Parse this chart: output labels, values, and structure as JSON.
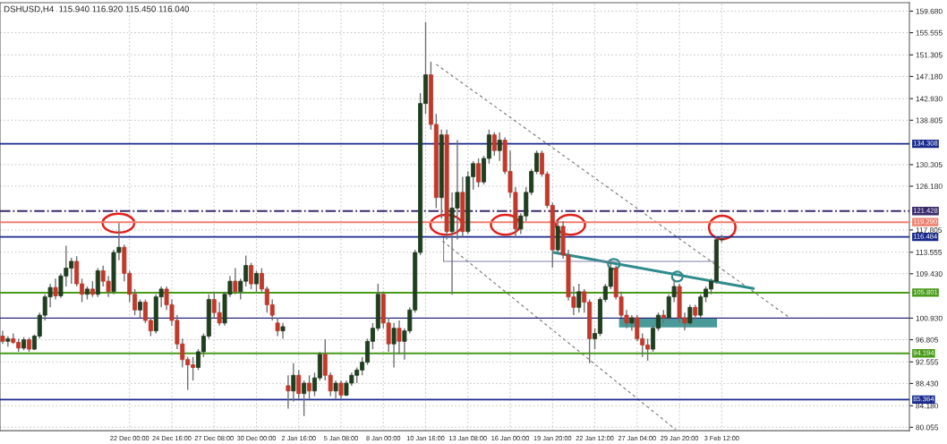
{
  "chart_data": {
    "type": "candlestick",
    "title": "DSHUSD,H4  115.940 116.920 115.450 116.040",
    "categories": [
      null,
      null,
      null,
      null,
      null,
      null,
      null,
      null,
      null,
      null,
      null,
      null,
      null,
      null,
      null,
      null,
      null,
      null,
      null,
      null,
      null,
      null,
      null,
      null,
      "22 Dec 00:00",
      null,
      null,
      null,
      null,
      null,
      null,
      null,
      "24 Dec 16:00",
      null,
      null,
      null,
      null,
      null,
      null,
      null,
      "27 Dec 08:00",
      null,
      null,
      null,
      null,
      null,
      null,
      null,
      "30 Dec 00:00",
      null,
      null,
      null,
      null,
      null,
      null,
      null,
      "2 Jan 16:00",
      null,
      null,
      null,
      null,
      null,
      null,
      null,
      "5 Jan 08:00",
      null,
      null,
      null,
      null,
      null,
      null,
      null,
      "8 Jan 00:00",
      null,
      null,
      null,
      null,
      null,
      null,
      null,
      "10 Jan 16:00",
      null,
      null,
      null,
      null,
      null,
      null,
      null,
      "13 Jan 08:00",
      null,
      null,
      null,
      null,
      null,
      null,
      null,
      "16 Jan 00:00",
      null,
      null,
      null,
      null,
      null,
      null,
      null,
      "19 Jan 20:00",
      null,
      null,
      null,
      null,
      null,
      null,
      null,
      "22 Jan 12:00",
      null,
      null,
      null,
      null,
      null,
      null,
      null,
      "27 Jan 04:00",
      null,
      null,
      null,
      null,
      null,
      null,
      null,
      "29 Jan 20:00",
      null,
      null,
      null,
      null,
      null,
      null,
      null,
      "3 Feb 12:00",
      null,
      null,
      null,
      null,
      null,
      null,
      null,
      null,
      null,
      null,
      null,
      null,
      null,
      null,
      null,
      null,
      null,
      null,
      null,
      null,
      null,
      null,
      null,
      null,
      null,
      null,
      null,
      null,
      null,
      null,
      null,
      null,
      null,
      null,
      null
    ],
    "ohlc": [
      [
        97.5,
        98.5,
        96,
        96.5
      ],
      [
        96.5,
        97.5,
        95.5,
        97
      ],
      [
        97,
        98,
        96,
        96.3
      ],
      [
        96.3,
        97,
        94.5,
        95.2
      ],
      [
        95.2,
        97.3,
        94.8,
        96.8
      ],
      [
        96.8,
        97.2,
        94.5,
        95
      ],
      [
        95,
        97.8,
        94.8,
        97.5
      ],
      [
        97.5,
        102,
        97,
        101.5
      ],
      [
        101.5,
        105.5,
        100.5,
        105
      ],
      [
        105,
        107.5,
        103,
        106.8
      ],
      [
        106.8,
        108.5,
        104.5,
        105.2
      ],
      [
        105.2,
        109.5,
        104.8,
        109
      ],
      [
        109,
        114.8,
        107,
        110.5
      ],
      [
        110.5,
        112.5,
        107.5,
        111.8
      ],
      [
        111.8,
        112.8,
        107,
        107.5
      ],
      [
        107.5,
        108.5,
        104,
        105.5
      ],
      [
        105.5,
        107,
        104.5,
        106.5
      ],
      [
        106.5,
        108,
        105,
        105.5
      ],
      [
        105.5,
        110.5,
        105,
        110
      ],
      [
        110,
        111,
        107,
        108
      ],
      [
        108,
        109,
        105,
        106
      ],
      [
        106,
        114,
        105.5,
        113.5
      ],
      [
        113.5,
        119.1,
        112,
        114.5
      ],
      [
        114.5,
        115,
        108,
        109.5
      ],
      [
        109.5,
        110,
        104,
        105.5
      ],
      [
        105.5,
        106.5,
        101.5,
        102.5
      ],
      [
        102.5,
        104.5,
        101,
        104
      ],
      [
        104,
        104.5,
        100,
        100.5
      ],
      [
        100.5,
        101,
        97.5,
        98.5
      ],
      [
        98.5,
        105.5,
        98,
        105
      ],
      [
        105,
        107,
        103,
        106.5
      ],
      [
        106.5,
        107,
        102.5,
        103.5
      ],
      [
        103.5,
        104.5,
        99.5,
        100.5
      ],
      [
        100.5,
        101.5,
        95,
        96
      ],
      [
        96,
        97,
        91.5,
        93
      ],
      [
        93,
        93.5,
        87.2,
        92
      ],
      [
        92,
        93.5,
        89,
        91.5
      ],
      [
        91.5,
        95,
        91,
        94.5
      ],
      [
        94.5,
        98,
        93.5,
        97.5
      ],
      [
        97.5,
        105.5,
        97,
        104.5
      ],
      [
        104.5,
        106,
        101,
        102
      ],
      [
        102,
        104,
        99.5,
        100
      ],
      [
        100,
        106,
        99.5,
        105.5
      ],
      [
        105.5,
        109,
        105,
        108
      ],
      [
        108,
        110.5,
        105.5,
        106
      ],
      [
        106,
        108.5,
        104.5,
        108
      ],
      [
        108,
        112.9,
        107,
        111
      ],
      [
        111,
        111.5,
        106.5,
        107.5
      ],
      [
        107.5,
        110,
        106,
        109.5
      ],
      [
        109.5,
        110.5,
        106,
        106.5
      ],
      [
        106.5,
        107,
        102,
        103.5
      ],
      [
        103.5,
        104.5,
        100.5,
        101.5
      ],
      [
        100,
        101,
        97.5,
        98.5
      ],
      [
        98.5,
        100,
        97,
        99.3
      ],
      [
        88,
        90,
        83.6,
        87
      ],
      [
        87,
        92.3,
        85,
        90
      ],
      [
        90,
        91,
        85.5,
        86.5
      ],
      [
        86.5,
        89,
        82.2,
        88.5
      ],
      [
        88.5,
        90,
        85.5,
        87
      ],
      [
        87,
        90.5,
        86,
        89.5
      ],
      [
        89.5,
        94.5,
        89,
        94
      ],
      [
        94,
        96.9,
        89,
        90
      ],
      [
        90,
        90.5,
        86,
        87
      ],
      [
        87,
        89,
        85.5,
        88.5
      ],
      [
        88.5,
        89,
        85.5,
        86.2
      ],
      [
        86.2,
        89,
        86,
        88.5
      ],
      [
        88.5,
        90.5,
        88,
        90
      ],
      [
        90,
        91.5,
        88.5,
        91
      ],
      [
        91,
        93.5,
        90,
        92.5
      ],
      [
        92.5,
        97,
        92,
        96.5
      ],
      [
        96.5,
        100,
        95,
        99
      ],
      [
        99,
        107.5,
        98.5,
        105.5
      ],
      [
        105.5,
        106,
        99,
        100
      ],
      [
        100,
        101,
        94.5,
        96
      ],
      [
        96,
        100,
        91.5,
        99
      ],
      [
        99,
        100.5,
        94,
        96.5
      ],
      [
        96.5,
        99,
        93,
        98.5
      ],
      [
        98.5,
        103,
        98,
        102.5
      ],
      [
        102.5,
        114,
        102,
        113.5
      ],
      [
        113.5,
        144,
        113,
        142
      ],
      [
        142,
        157.6,
        140,
        147.5
      ],
      [
        147.5,
        150,
        137,
        138
      ],
      [
        138,
        140,
        122,
        124
      ],
      [
        124,
        137,
        120,
        136
      ],
      [
        136,
        137,
        116,
        117.5
      ],
      [
        117.5,
        125,
        105.4,
        122
      ],
      [
        122,
        135,
        116,
        125
      ],
      [
        125,
        128,
        116.5,
        117.5
      ],
      [
        117.5,
        129,
        117,
        128
      ],
      [
        128,
        131,
        125.5,
        130.5
      ],
      [
        130.5,
        131.5,
        126,
        127
      ],
      [
        127,
        132,
        126.5,
        131.5
      ],
      [
        131.5,
        137,
        130.5,
        136
      ],
      [
        136,
        136.5,
        132,
        133
      ],
      [
        133,
        136.5,
        131,
        135
      ],
      [
        135,
        135.5,
        128.5,
        129
      ],
      [
        129,
        133,
        124,
        125
      ],
      [
        125,
        126,
        116.3,
        118
      ],
      [
        118,
        121,
        117,
        120.5
      ],
      [
        120.5,
        126,
        119.5,
        125
      ],
      [
        125,
        129.5,
        124.5,
        129
      ],
      [
        129,
        133,
        128.5,
        132.5
      ],
      [
        132.5,
        133,
        128,
        128.5
      ],
      [
        128.5,
        129,
        122,
        122.5
      ],
      [
        122.5,
        123,
        110.6,
        114
      ],
      [
        114,
        119.7,
        113.5,
        118.5
      ],
      [
        118.5,
        119.5,
        112.3,
        113
      ],
      [
        113,
        114,
        104.3,
        105
      ],
      [
        105,
        107,
        101.5,
        103
      ],
      [
        103,
        107.5,
        102,
        106
      ],
      [
        106,
        106.5,
        102,
        104
      ],
      [
        104,
        104.5,
        92.3,
        97
      ],
      [
        97,
        99,
        95,
        98
      ],
      [
        98,
        105,
        97.5,
        104.5
      ],
      [
        104.5,
        107.5,
        104,
        107
      ],
      [
        107,
        111.8,
        106.5,
        110.5
      ],
      [
        110.5,
        111,
        104.5,
        105
      ],
      [
        105,
        106,
        101,
        101.5
      ],
      [
        101.5,
        102.5,
        99,
        100
      ],
      [
        100,
        101.5,
        98.5,
        101
      ],
      [
        101,
        101.5,
        96.5,
        97
      ],
      [
        97,
        98,
        93.5,
        95.8
      ],
      [
        95.8,
        97,
        92.8,
        95
      ],
      [
        95,
        99.5,
        94.5,
        99
      ],
      [
        99,
        102,
        98.5,
        101.5
      ],
      [
        101.5,
        102.5,
        100,
        101
      ],
      [
        101,
        105.5,
        100.5,
        105
      ],
      [
        105,
        108.4,
        104,
        107
      ],
      [
        107,
        107.5,
        100,
        101
      ],
      [
        101,
        102,
        98.6,
        100
      ],
      [
        100,
        103.5,
        99.5,
        103
      ],
      [
        103,
        103.5,
        100.5,
        101.5
      ],
      [
        101.5,
        105.5,
        101,
        105
      ],
      [
        105,
        107,
        104,
        106.5
      ],
      [
        106.5,
        108.5,
        105.5,
        108
      ],
      [
        108,
        116.5,
        107.5,
        115.94
      ],
      [
        115.94,
        116.92,
        115.45,
        116.04
      ],
      null,
      null,
      null,
      null,
      null,
      null,
      null,
      null,
      null,
      null,
      null,
      null,
      null,
      null,
      null,
      null,
      null,
      null,
      null,
      null,
      null,
      null,
      null,
      null,
      null,
      null,
      null,
      null,
      null,
      null,
      null,
      null,
      null,
      null,
      null
    ],
    "ylim": [
      79.4,
      161.3
    ],
    "yticks": [
      {
        "value": 159.68,
        "label": "159.680"
      },
      155.555,
      151.305,
      {
        "value": 147.18,
        "label": "147.180"
      },
      {
        "value": 142.93,
        "label": "142.930"
      },
      138.805,
      130.305,
      {
        "value": 126.18,
        "label": "126.180"
      },
      117.805,
      113.555,
      {
        "value": 109.43,
        "label": "109.430"
      },
      {
        "value": 100.93,
        "label": "100.930"
      },
      96.805,
      92.555,
      {
        "value": 88.43,
        "label": "88.430"
      },
      {
        "value": 84.18,
        "label": "84.180"
      },
      80.055
    ],
    "ref_lines": [
      {
        "axis": "y",
        "value": 134.308,
        "label": "134.308",
        "color": "#1a2a8c",
        "line_style": "solid"
      },
      {
        "axis": "y",
        "value": 121.428,
        "label": "121.428",
        "color": "#3a2a6a",
        "line_style": "dashdot"
      },
      {
        "axis": "y",
        "value": 119.29,
        "label": "119.290",
        "color": "#f08070",
        "line_style": "solid"
      },
      {
        "axis": "y",
        "value": 116.484,
        "label": "116.484",
        "color": "#1a2a8c",
        "line_style": "solid"
      },
      {
        "axis": "y",
        "value": 105.801,
        "label": "105.801",
        "color": "#4a9a1a",
        "line_style": "solid"
      },
      {
        "axis": "y",
        "value": 94.194,
        "label": "94.194",
        "color": "#4a9a1a",
        "line_style": "solid"
      },
      {
        "axis": "y",
        "value": 85.364,
        "label": "85.364",
        "color": "#1a2a8c",
        "line_style": "solid"
      },
      {
        "axis": "y",
        "value": 100.93,
        "color": "#2a2a7a",
        "line_style": "solid"
      }
    ],
    "grid": true
  }
}
